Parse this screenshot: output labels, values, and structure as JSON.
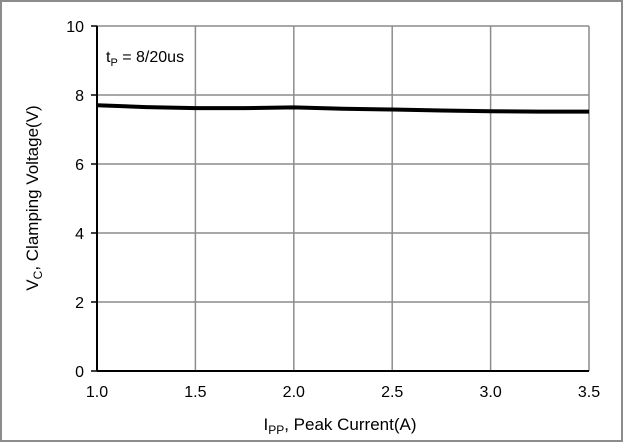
{
  "chart_data": {
    "type": "line",
    "annotation": {
      "base": "t",
      "sub": "P",
      "text": " = 8/20us"
    },
    "xlabel": {
      "base": "I",
      "sub": "PP",
      "text": ", Peak Current(A)"
    },
    "ylabel": {
      "base": "V",
      "sub": "C",
      "text": ", Clamping Voltage(V)"
    },
    "xlim": [
      1.0,
      3.5
    ],
    "ylim": [
      0,
      10
    ],
    "xticks": [
      "1.0",
      "1.5",
      "2.0",
      "2.5",
      "3.0",
      "3.5"
    ],
    "yticks": [
      "0",
      "2",
      "4",
      "6",
      "8",
      "10"
    ],
    "grid": true,
    "series": [
      {
        "color": "#000000",
        "x": [
          1.0,
          1.25,
          1.5,
          1.75,
          2.0,
          2.25,
          2.5,
          2.75,
          3.0,
          3.25,
          3.5
        ],
        "y": [
          7.7,
          7.65,
          7.62,
          7.62,
          7.64,
          7.6,
          7.58,
          7.55,
          7.53,
          7.52,
          7.52
        ]
      }
    ]
  }
}
